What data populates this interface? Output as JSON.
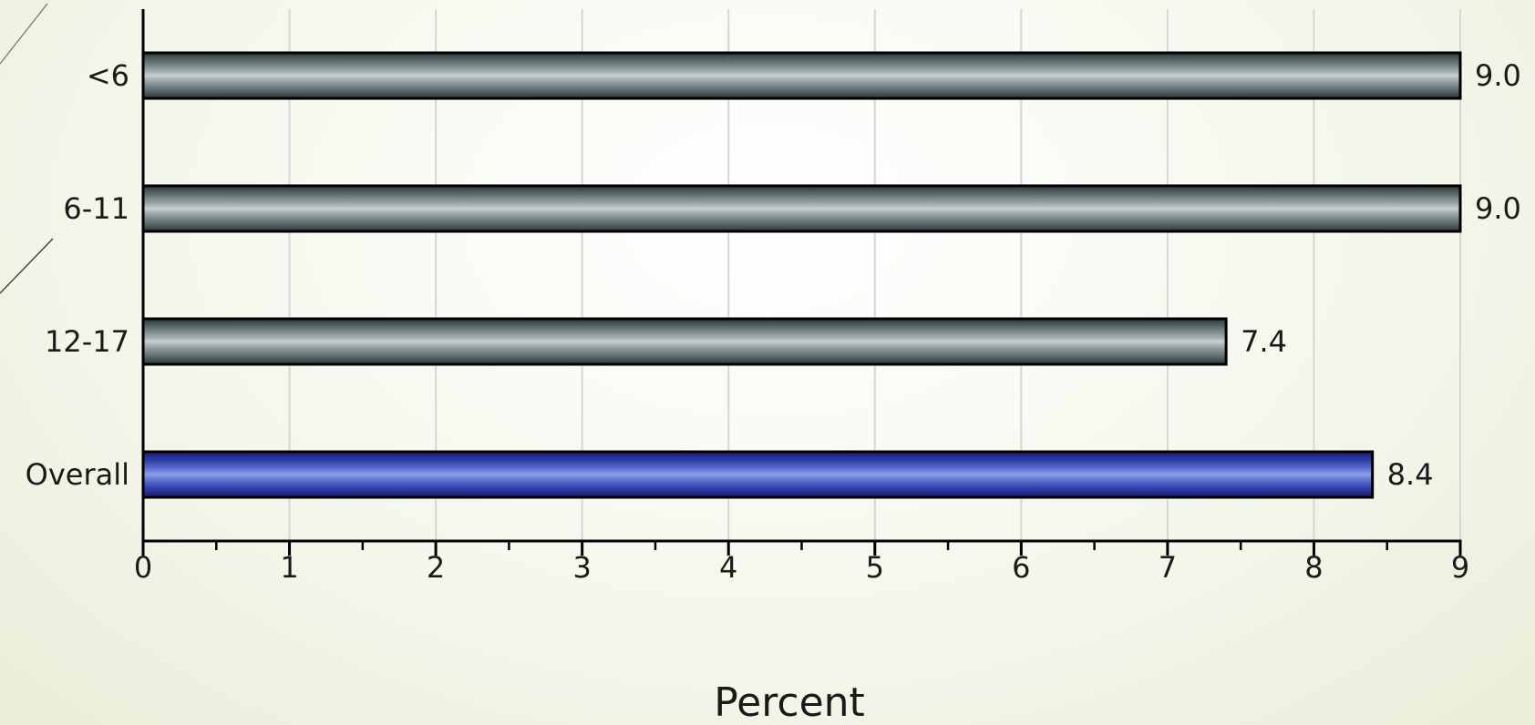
{
  "chart_data": {
    "type": "bar",
    "orientation": "horizontal",
    "categories": [
      "<6",
      "6-11",
      "12-17",
      "Overall"
    ],
    "values": [
      9.0,
      9.0,
      7.4,
      8.4
    ],
    "value_labels": [
      "9.0",
      "9.0",
      "7.4",
      "8.4"
    ],
    "highlight_category": "Overall",
    "xlabel": "Percent",
    "ylabel": "",
    "xlim": [
      0,
      9
    ],
    "x_ticks": [
      0,
      1,
      2,
      3,
      4,
      5,
      6,
      7,
      8,
      9
    ],
    "grid": true,
    "colors": {
      "bar": "#5f6e70",
      "bar_highlight": "#4351c0"
    }
  }
}
